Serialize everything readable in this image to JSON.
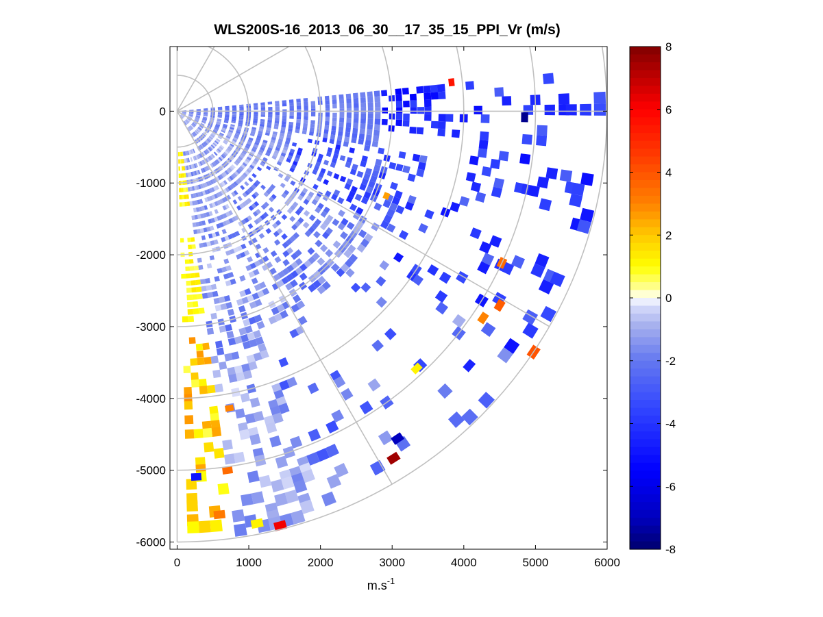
{
  "chart_data": {
    "type": "heatmap",
    "subtype": "polar-ppi-scan",
    "title": "WLS200S-16_2013_06_30__17_35_15_PPI_Vr (m/s)",
    "xlabel": "m.s",
    "xlabel_superscript": "-1",
    "ylabel": "",
    "xlim": [
      -100,
      6000
    ],
    "ylim": [
      -6100,
      900
    ],
    "xticks": [
      0,
      1000,
      2000,
      3000,
      4000,
      5000,
      6000
    ],
    "xtick_labels": [
      "0",
      "1000",
      "2000",
      "3000",
      "4000",
      "5000",
      "6000"
    ],
    "yticks": [
      0,
      -1000,
      -2000,
      -3000,
      -4000,
      -5000,
      -6000
    ],
    "ytick_labels": [
      "0",
      "-1000",
      "-2000",
      "-3000",
      "-4000",
      "-5000",
      "-6000"
    ],
    "grid": "polar",
    "polar_grid": {
      "ring_ranges": [
        500,
        1000,
        2000,
        3000,
        4000,
        5000,
        6000
      ],
      "spoke_azimuths_deg": [
        0,
        30,
        60,
        90,
        120,
        150,
        180
      ]
    },
    "sector": {
      "azimuth_start_deg": 85,
      "azimuth_end_deg": 180,
      "range_max": 6000
    },
    "colorbar": {
      "label": "",
      "range": [
        -8,
        8
      ],
      "ticks": [
        8,
        6,
        4,
        2,
        0,
        -2,
        -4,
        -6,
        -8
      ],
      "tick_labels": [
        "8",
        "6",
        "4",
        "2",
        "0",
        "-2",
        "-4",
        "-6",
        "-8"
      ],
      "colormap": "blue-white-yellow-red",
      "colors": {
        "min": "#000080",
        "neg": "#0000ff",
        "zero": "#ffffff",
        "pos_low": "#ffff00",
        "pos_mid": "#ff8000",
        "pos_high": "#ff0000",
        "max": "#800000"
      }
    },
    "regions": [
      {
        "az": [
          85,
          100
        ],
        "r": [
          100,
          2900
        ],
        "v": [
          -2.6,
          -1.4
        ],
        "density": 0.97
      },
      {
        "az": [
          85,
          96
        ],
        "r": [
          2900,
          3900
        ],
        "v": [
          -5.5,
          -3.5
        ],
        "density": 0.6
      },
      {
        "az": [
          85,
          100
        ],
        "r": [
          3900,
          6000
        ],
        "v": [
          -5.2,
          -2.5
        ],
        "density": 0.12
      },
      {
        "az": [
          100,
          118
        ],
        "r": [
          100,
          1700
        ],
        "v": [
          -2.2,
          -0.8
        ],
        "density": 0.92
      },
      {
        "az": [
          100,
          120
        ],
        "r": [
          1700,
          3600
        ],
        "v": [
          -4.5,
          -2.0
        ],
        "density": 0.45
      },
      {
        "az": [
          100,
          125
        ],
        "r": [
          3600,
          6000
        ],
        "v": [
          -5.0,
          -2.5
        ],
        "density": 0.1
      },
      {
        "az": [
          118,
          150
        ],
        "r": [
          100,
          1400
        ],
        "v": [
          -2.0,
          -0.3
        ],
        "density": 0.95
      },
      {
        "az": [
          118,
          150
        ],
        "r": [
          1400,
          3300
        ],
        "v": [
          -3.0,
          -0.8
        ],
        "density": 0.6
      },
      {
        "az": [
          120,
          160
        ],
        "r": [
          3300,
          6000
        ],
        "v": [
          -3.5,
          -0.8
        ],
        "density": 0.08
      },
      {
        "az": [
          150,
          172
        ],
        "r": [
          600,
          1800
        ],
        "v": [
          -2.0,
          -0.4
        ],
        "density": 0.85
      },
      {
        "az": [
          150,
          172
        ],
        "r": [
          1800,
          3600
        ],
        "v": [
          -2.5,
          -0.3
        ],
        "density": 0.5
      },
      {
        "az": [
          150,
          172
        ],
        "r": [
          3600,
          6000
        ],
        "v": [
          -2.0,
          -0.2
        ],
        "density": 0.3
      },
      {
        "az": [
          165,
          179
        ],
        "r": [
          600,
          1400
        ],
        "v": [
          0.6,
          1.6
        ],
        "density": 0.95
      },
      {
        "az": [
          170,
          179
        ],
        "r": [
          1800,
          3000
        ],
        "v": [
          0.5,
          1.4
        ],
        "density": 0.7
      },
      {
        "az": [
          170,
          179
        ],
        "r": [
          3200,
          6000
        ],
        "v": [
          0.6,
          2.8
        ],
        "density": 0.35
      }
    ],
    "highlight_cells": [
      {
        "az": 84,
        "r": 3850,
        "v": 5.5
      },
      {
        "az": 91,
        "r": 4850,
        "v": -7.6
      },
      {
        "az": 112,
        "r": 3150,
        "v": 2.6
      },
      {
        "az": 115,
        "r": 5000,
        "v": 3.5
      },
      {
        "az": 121,
        "r": 5250,
        "v": 3.8
      },
      {
        "az": 124,
        "r": 5150,
        "v": 3.0
      },
      {
        "az": 124,
        "r": 6000,
        "v": 4.0
      },
      {
        "az": 131,
        "r": 5400,
        "v": -4.5
      },
      {
        "az": 137,
        "r": 4900,
        "v": 1.2
      },
      {
        "az": 146,
        "r": 5500,
        "v": -7.0
      },
      {
        "az": 148,
        "r": 5700,
        "v": 7.5
      },
      {
        "az": 170,
        "r": 4200,
        "v": 3.0
      },
      {
        "az": 172,
        "r": 5050,
        "v": 3.5
      },
      {
        "az": 177,
        "r": 5100,
        "v": -5.0
      },
      {
        "az": 174,
        "r": 5650,
        "v": 3.2
      },
      {
        "az": 169,
        "r": 5850,
        "v": 1.2
      },
      {
        "az": 166,
        "r": 5950,
        "v": 6.2
      }
    ]
  }
}
